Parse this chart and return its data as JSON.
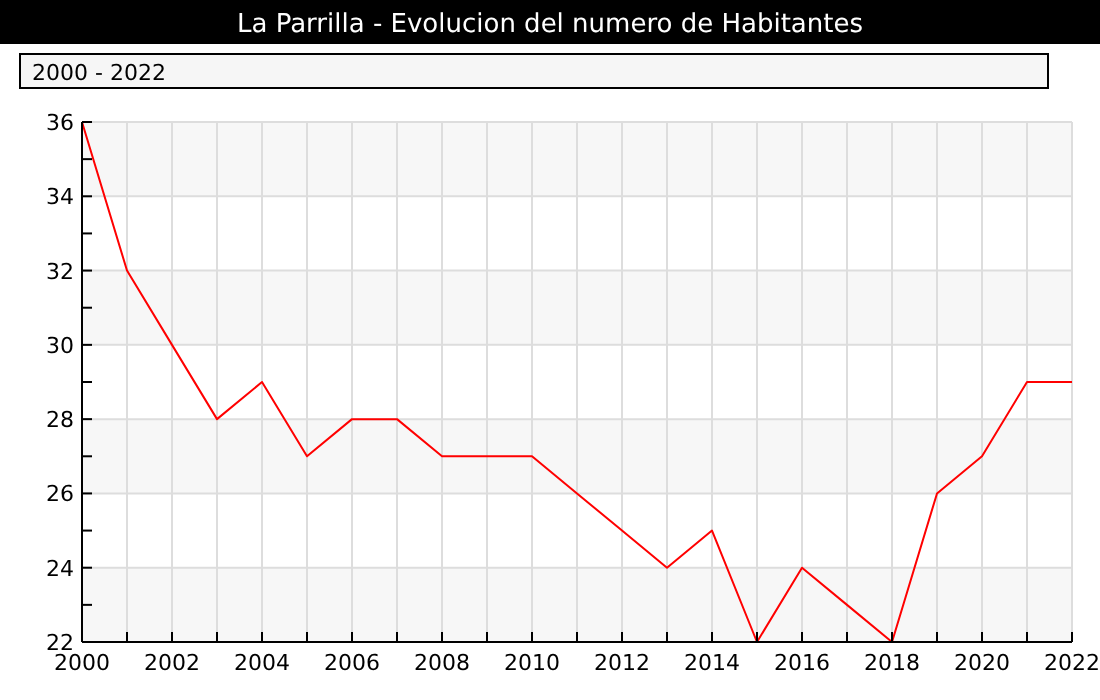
{
  "chart_data": {
    "type": "line",
    "title": "La Parrilla - Evolucion del numero de Habitantes",
    "subtitle": "2000 - 2022",
    "x": [
      2000,
      2001,
      2002,
      2003,
      2004,
      2005,
      2006,
      2007,
      2008,
      2009,
      2010,
      2011,
      2012,
      2013,
      2014,
      2015,
      2016,
      2017,
      2018,
      2019,
      2020,
      2021,
      2022
    ],
    "series": [
      {
        "color": "#ff0000",
        "values": [
          36,
          32,
          30,
          28,
          29,
          27,
          28,
          28,
          27,
          27,
          27,
          26,
          25,
          24,
          25,
          22,
          24,
          23,
          22,
          26,
          27,
          29,
          29
        ]
      }
    ],
    "xlim": [
      2000,
      2022
    ],
    "xticks": [
      2000,
      {
        "value": 2001,
        "label": null
      },
      2002,
      {
        "value": 2003,
        "label": null
      },
      2004,
      {
        "value": 2005,
        "label": null
      },
      2006,
      {
        "value": 2007,
        "label": null
      },
      2008,
      {
        "value": 2009,
        "label": null
      },
      2010,
      {
        "value": 2011,
        "label": null
      },
      2012,
      {
        "value": 2013,
        "label": null
      },
      2014,
      {
        "value": 2015,
        "label": null
      },
      2016,
      {
        "value": 2017,
        "label": null
      },
      2018,
      {
        "value": 2019,
        "label": null
      },
      2020,
      {
        "value": 2021,
        "label": null
      },
      2022
    ],
    "ylim": [
      22,
      36
    ],
    "yticks": [
      22,
      {
        "value": 23,
        "label": null
      },
      24,
      {
        "value": 25,
        "label": null
      },
      26,
      {
        "value": 27,
        "label": null
      },
      28,
      {
        "value": 29,
        "label": null
      },
      30,
      {
        "value": 31,
        "label": null
      },
      32,
      {
        "value": 33,
        "label": null
      },
      34,
      {
        "value": 35,
        "label": null
      },
      36
    ],
    "grid": true,
    "marker": "none",
    "line_style": "solid"
  }
}
